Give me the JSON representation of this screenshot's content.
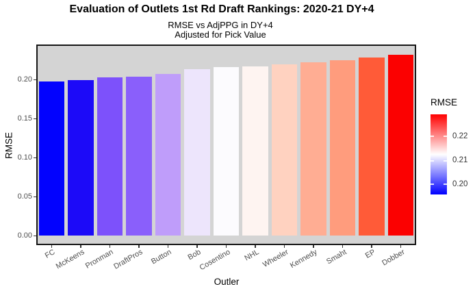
{
  "title": "Evaluation of Outlets 1st Rd Draft Rankings: 2020-21 DY+4",
  "subtitle_line1": "RMSE vs AdjPPG in DY+4",
  "subtitle_line2": "Adjusted for Pick Value",
  "chart_data": {
    "type": "bar",
    "title": "Evaluation of Outlets 1st Rd Draft Rankings: 2020-21 DY+4",
    "subtitle": [
      "RMSE vs AdjPPG in DY+4",
      "Adjusted for Pick Value"
    ],
    "xlabel": "Outler",
    "ylabel": "RMSE",
    "categories": [
      "FC",
      "McKeens",
      "Pronman",
      "DraftPros",
      "Button",
      "Bob",
      "Cosentino",
      "NHL",
      "Wheeler",
      "Kennedy",
      "Smaht",
      "EP",
      "Dobber"
    ],
    "values": [
      0.198,
      0.2,
      0.203,
      0.204,
      0.208,
      0.214,
      0.216,
      0.217,
      0.22,
      0.223,
      0.225,
      0.229,
      0.232
    ],
    "bar_colors": [
      "#0202FE",
      "#1C0AF8",
      "#7D51FB",
      "#8A5FFB",
      "#BF9DFA",
      "#EDE5FC",
      "#FCFBFE",
      "#FEF4F1",
      "#FFD2C0",
      "#FFAD93",
      "#FF9C7D",
      "#FF5B38",
      "#FB0101"
    ],
    "ylim": [
      0,
      0.245
    ],
    "ytick_labels": [
      "0.00",
      "0.05",
      "0.10",
      "0.15",
      "0.20"
    ],
    "ytick_values": [
      0,
      0.05,
      0.1,
      0.15,
      0.2
    ],
    "grid": false,
    "panel_background": "#D4D4D4",
    "legend": {
      "title": "RMSE",
      "position": "right",
      "tick_labels": [
        "0.22",
        "0.21",
        "0.20"
      ],
      "tick_fractions_from_top": [
        0.274,
        0.581,
        0.872
      ],
      "high_color": "#FF0000",
      "mid_color": "#FFFFFF",
      "low_color": "#0000FF"
    }
  }
}
